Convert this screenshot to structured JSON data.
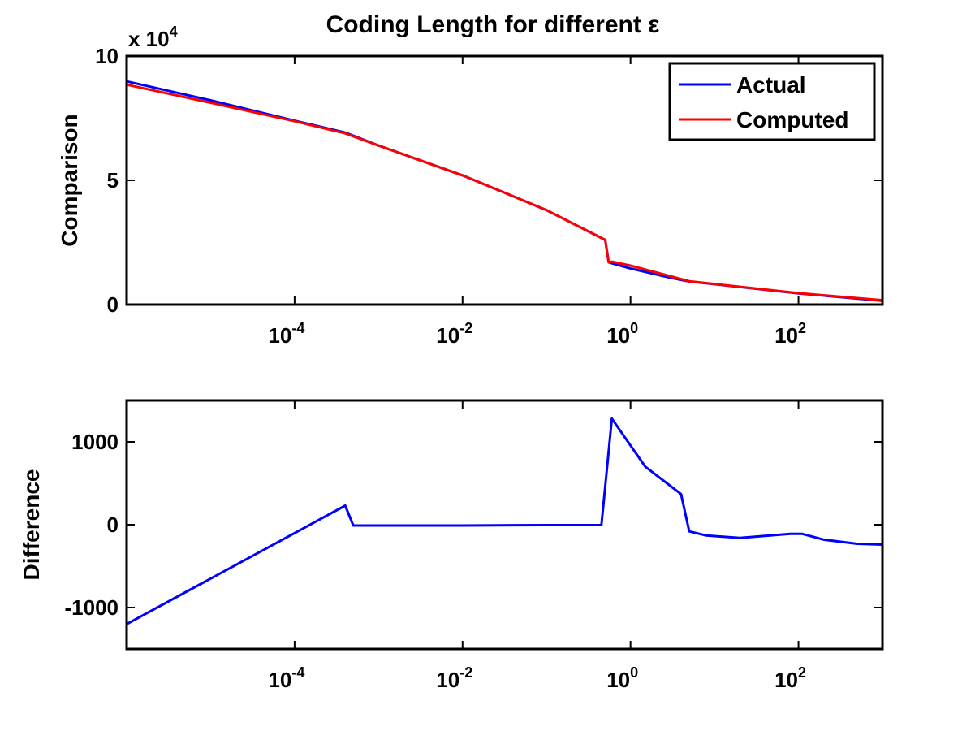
{
  "chart_data": [
    {
      "type": "line",
      "title": "Coding Length for different ε",
      "xlabel": "",
      "ylabel": "Comparison",
      "xscale": "log",
      "xlim": [
        1e-06,
        1000
      ],
      "ylim": [
        0,
        100000
      ],
      "y_multiplier_label": "x 10",
      "y_multiplier_exponent": "4",
      "x_ticks": [
        {
          "value": 0.0001,
          "base": "10",
          "exp": "-4"
        },
        {
          "value": 0.01,
          "base": "10",
          "exp": "-2"
        },
        {
          "value": 1,
          "base": "10",
          "exp": "0"
        },
        {
          "value": 100,
          "base": "10",
          "exp": "2"
        }
      ],
      "y_ticks": [
        {
          "value": 0,
          "label": "0"
        },
        {
          "value": 50000,
          "label": "5"
        },
        {
          "value": 100000,
          "label": "10"
        }
      ],
      "legend": {
        "position": "top-right"
      },
      "series": [
        {
          "name": "Actual",
          "color": "#0000ff",
          "x": [
            1e-06,
            1e-05,
            0.0001,
            0.0004,
            0.001,
            0.01,
            0.1,
            0.5,
            0.55,
            1,
            3,
            5,
            10,
            100,
            1000
          ],
          "y": [
            89800,
            82200,
            74000,
            69200,
            64000,
            52000,
            38000,
            26000,
            17000,
            14500,
            10800,
            9300,
            8200,
            4500,
            1500
          ]
        },
        {
          "name": "Computed",
          "color": "#ff0000",
          "x": [
            1e-06,
            1e-05,
            0.0001,
            0.0004,
            0.001,
            0.01,
            0.1,
            0.5,
            0.55,
            0.6,
            1,
            3,
            5,
            10,
            100,
            1000
          ],
          "y": [
            88500,
            81200,
            73800,
            68900,
            64000,
            52000,
            38000,
            26000,
            17000,
            17300,
            15700,
            11400,
            9400,
            8300,
            4600,
            1750
          ]
        }
      ]
    },
    {
      "type": "line",
      "title": "",
      "xlabel": "",
      "ylabel": "Difference",
      "xscale": "log",
      "xlim": [
        1e-06,
        1000
      ],
      "ylim": [
        -1500,
        1500
      ],
      "x_ticks": [
        {
          "value": 0.0001,
          "base": "10",
          "exp": "-4"
        },
        {
          "value": 0.01,
          "base": "10",
          "exp": "-2"
        },
        {
          "value": 1,
          "base": "10",
          "exp": "0"
        },
        {
          "value": 100,
          "base": "10",
          "exp": "2"
        }
      ],
      "y_ticks": [
        {
          "value": -1000,
          "label": "-1000"
        },
        {
          "value": 0,
          "label": "0"
        },
        {
          "value": 1000,
          "label": "1000"
        }
      ],
      "series": [
        {
          "color": "#0000ff",
          "x": [
            1e-06,
            0.0004,
            0.0005,
            0.003,
            0.01,
            0.1,
            0.45,
            0.6,
            1.5,
            4,
            5,
            8,
            20,
            80,
            110,
            200,
            500,
            1000
          ],
          "y": [
            -1200,
            230,
            -10,
            -10,
            -10,
            -5,
            -5,
            1280,
            700,
            370,
            -80,
            -130,
            -160,
            -110,
            -110,
            -180,
            -230,
            -240
          ]
        }
      ]
    }
  ]
}
